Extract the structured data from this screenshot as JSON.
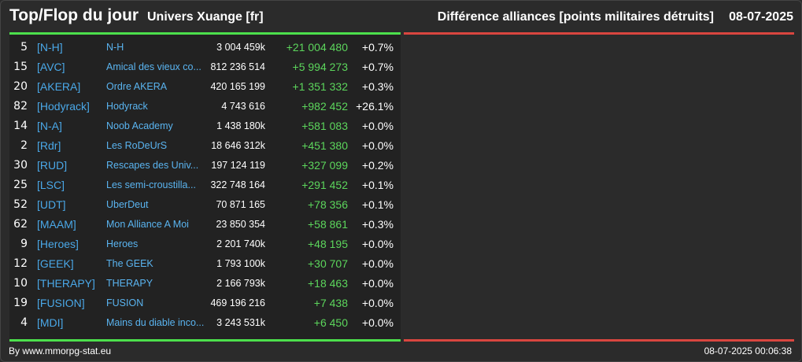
{
  "header": {
    "title": "Top/Flop du jour",
    "subtitle": "Univers Xuange [fr]",
    "right_title": "Différence alliances [points militaires détruits]",
    "date": "08-07-2025"
  },
  "colors": {
    "accent_top": "#4ce04c",
    "accent_flop": "#d9463f",
    "tag_color": "#4aa8e8",
    "diff_color": "#5cd65c"
  },
  "top_rows": [
    {
      "rank": "5",
      "tag": "[N-H]",
      "name": "N-H",
      "points": "3 004 459k",
      "diff": "+21 004 480",
      "pct": "+0.7%"
    },
    {
      "rank": "15",
      "tag": "[AVC]",
      "name": "Amical des vieux co...",
      "points": "812 236 514",
      "diff": "+5 994 273",
      "pct": "+0.7%"
    },
    {
      "rank": "20",
      "tag": "[AKERA]",
      "name": "Ordre AKERA",
      "points": "420 165 199",
      "diff": "+1 351 332",
      "pct": "+0.3%"
    },
    {
      "rank": "82",
      "tag": "[Hodyrack]",
      "name": "Hodyrack",
      "points": "4 743 616",
      "diff": "+982 452",
      "pct": "+26.1%"
    },
    {
      "rank": "14",
      "tag": "[N-A]",
      "name": "Noob Academy",
      "points": "1 438 180k",
      "diff": "+581 083",
      "pct": "+0.0%"
    },
    {
      "rank": "2",
      "tag": "[Rdr]",
      "name": "Les RoDeUrS",
      "points": "18 646 312k",
      "diff": "+451 380",
      "pct": "+0.0%"
    },
    {
      "rank": "30",
      "tag": "[RUD]",
      "name": "Rescapes des Univ...",
      "points": "197 124 119",
      "diff": "+327 099",
      "pct": "+0.2%"
    },
    {
      "rank": "25",
      "tag": "[LSC]",
      "name": "Les semi-croustilla...",
      "points": "322 748 164",
      "diff": "+291 452",
      "pct": "+0.1%"
    },
    {
      "rank": "52",
      "tag": "[UDT]",
      "name": "UberDeut",
      "points": "70 871 165",
      "diff": "+78 356",
      "pct": "+0.1%"
    },
    {
      "rank": "62",
      "tag": "[MAAM]",
      "name": "Mon Alliance A Moi",
      "points": "23 850 354",
      "diff": "+58 861",
      "pct": "+0.3%"
    },
    {
      "rank": "9",
      "tag": "[Heroes]",
      "name": "Heroes",
      "points": "2 201 740k",
      "diff": "+48 195",
      "pct": "+0.0%"
    },
    {
      "rank": "12",
      "tag": "[GEEK]",
      "name": "The GEEK",
      "points": "1 793 100k",
      "diff": "+30 707",
      "pct": "+0.0%"
    },
    {
      "rank": "10",
      "tag": "[THERAPY]",
      "name": "THERAPY",
      "points": "2 166 793k",
      "diff": "+18 463",
      "pct": "+0.0%"
    },
    {
      "rank": "19",
      "tag": "[FUSION]",
      "name": "FUSION",
      "points": "469 196 216",
      "diff": "+7 438",
      "pct": "+0.0%"
    },
    {
      "rank": "4",
      "tag": "[MDI]",
      "name": "Mains du diable inco...",
      "points": "3 243 531k",
      "diff": "+6 450",
      "pct": "+0.0%"
    }
  ],
  "footer": {
    "credit": "By www.mmorpg-stat.eu",
    "timestamp": "08-07-2025 00:06:38"
  }
}
